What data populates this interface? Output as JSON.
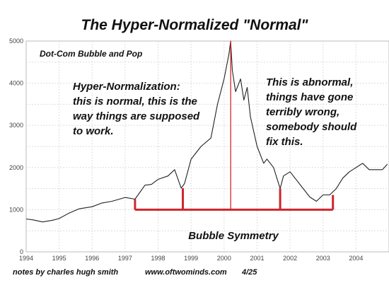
{
  "chart_data": {
    "type": "line",
    "title": "The Hyper-Normalized \"Normal\"",
    "xlabel": "",
    "ylabel": "",
    "xlim": [
      1994,
      2005
    ],
    "ylim": [
      0,
      5000
    ],
    "grid": true,
    "x_ticks": [
      "1994",
      "1995",
      "1996",
      "1997",
      "1998",
      "1999",
      "2000",
      "2001",
      "2002",
      "2003",
      "2004"
    ],
    "y_ticks": [
      "0",
      "1000",
      "2000",
      "3000",
      "4000",
      "5000"
    ],
    "series": [
      {
        "color": "#222222",
        "x": [
          1994.0,
          1994.2,
          1994.5,
          1994.8,
          1995.0,
          1995.3,
          1995.6,
          1996.0,
          1996.3,
          1996.6,
          1997.0,
          1997.3,
          1997.6,
          1997.8,
          1998.0,
          1998.3,
          1998.5,
          1998.7,
          1998.8,
          1999.0,
          1999.3,
          1999.6,
          1999.8,
          2000.0,
          2000.15,
          2000.2,
          2000.25,
          2000.35,
          2000.5,
          2000.6,
          2000.7,
          2000.8,
          2001.0,
          2001.2,
          2001.3,
          2001.5,
          2001.7,
          2001.8,
          2002.0,
          2002.2,
          2002.4,
          2002.6,
          2002.8,
          2003.0,
          2003.2,
          2003.4,
          2003.6,
          2003.8,
          2004.0,
          2004.2,
          2004.4,
          2004.6,
          2004.8,
          2004.95
        ],
        "values": [
          780,
          760,
          710,
          750,
          790,
          920,
          1020,
          1070,
          1160,
          1200,
          1290,
          1250,
          1580,
          1600,
          1720,
          1800,
          1950,
          1510,
          1620,
          2200,
          2500,
          2700,
          3500,
          4100,
          4700,
          5000,
          4300,
          3800,
          4100,
          3600,
          3900,
          3200,
          2500,
          2100,
          2200,
          2000,
          1500,
          1800,
          1900,
          1700,
          1500,
          1300,
          1200,
          1350,
          1350,
          1500,
          1750,
          1900,
          2000,
          2100,
          1950,
          1950,
          1950,
          2080
        ]
      }
    ],
    "annotations": {
      "dotcom": "Dot-Com Bubble and Pop",
      "normal": [
        "Hyper-Normalization:",
        "this is normal, this is the",
        "way things are supposed",
        "to work."
      ],
      "abnormal": [
        "This is abnormal,",
        "things have gone",
        "terribly wrong,",
        "somebody should",
        "fix this."
      ],
      "symmetry": "Bubble Symmetry"
    },
    "symmetry_bracket": {
      "color": "#d0242b",
      "base_y": 1000,
      "markers": [
        {
          "x": 1997.3,
          "top": 1250
        },
        {
          "x": 1998.75,
          "top": 1510
        },
        {
          "x": 2000.2,
          "top": 5000
        },
        {
          "x": 2001.7,
          "top": 1500
        },
        {
          "x": 2003.3,
          "top": 1350
        }
      ]
    }
  },
  "footer": {
    "notes": "notes by charles hugh smith",
    "site": "www.oftwominds.com",
    "date": "4/25"
  }
}
